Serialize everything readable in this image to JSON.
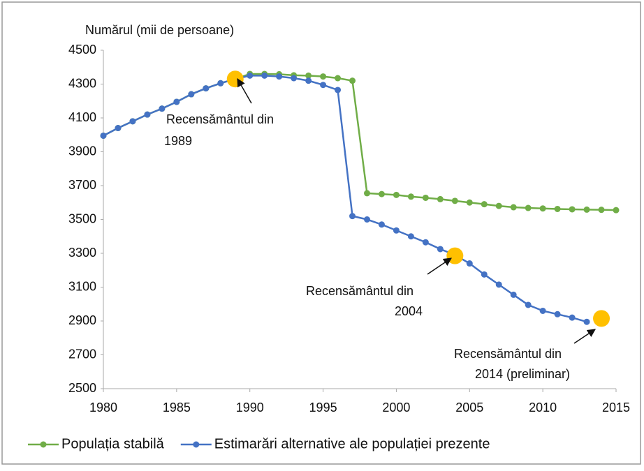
{
  "chart_data": {
    "type": "line",
    "y_axis_label": "Numărul (mii de persoane)",
    "x": [
      1980,
      1981,
      1982,
      1983,
      1984,
      1985,
      1986,
      1987,
      1988,
      1989,
      1990,
      1991,
      1992,
      1993,
      1994,
      1995,
      1996,
      1997,
      1998,
      1999,
      2000,
      2001,
      2002,
      2003,
      2004,
      2005,
      2006,
      2007,
      2008,
      2009,
      2010,
      2011,
      2012,
      2013,
      2014,
      2015
    ],
    "series": [
      {
        "name": "Populația stabilă",
        "color": "#70ad47",
        "values": [
          3995,
          4040,
          4080,
          4120,
          4155,
          4195,
          4240,
          4275,
          4305,
          4330,
          4360,
          4360,
          4358,
          4352,
          4350,
          4345,
          4335,
          4320,
          3655,
          3650,
          3645,
          3635,
          3628,
          3620,
          3610,
          3600,
          3590,
          3580,
          3572,
          3568,
          3565,
          3562,
          3560,
          3558,
          3557,
          3555
        ]
      },
      {
        "name": "Estimarări alternative ale populației prezente",
        "color": "#4472c4",
        "values": [
          3995,
          4040,
          4080,
          4120,
          4155,
          4195,
          4240,
          4275,
          4305,
          4330,
          4350,
          4350,
          4345,
          4335,
          4320,
          4295,
          4265,
          3520,
          3500,
          3470,
          3435,
          3400,
          3365,
          3325,
          3290,
          3240,
          3175,
          3115,
          3055,
          2995,
          2960,
          2940,
          2920,
          2895,
          null,
          null
        ]
      }
    ],
    "census": {
      "color": "#ffc000",
      "x": [
        1989,
        2004,
        2014
      ],
      "values": [
        4330,
        3285,
        2915
      ]
    },
    "annotations": [
      {
        "lines": [
          "Recensământul din",
          "1989"
        ]
      },
      {
        "lines": [
          "Recensământul din",
          "2004"
        ]
      },
      {
        "lines": [
          "Recensământul din",
          "2014 (preliminar)"
        ]
      }
    ],
    "xlim": [
      1980,
      2015
    ],
    "xticks": [
      1980,
      1985,
      1990,
      1995,
      2000,
      2005,
      2010,
      2015
    ],
    "ylim": [
      2500,
      4500
    ],
    "yticks": [
      2500,
      2700,
      2900,
      3100,
      3300,
      3500,
      3700,
      3900,
      4100,
      4300,
      4500
    ],
    "grid": false,
    "legend": "bottom"
  }
}
